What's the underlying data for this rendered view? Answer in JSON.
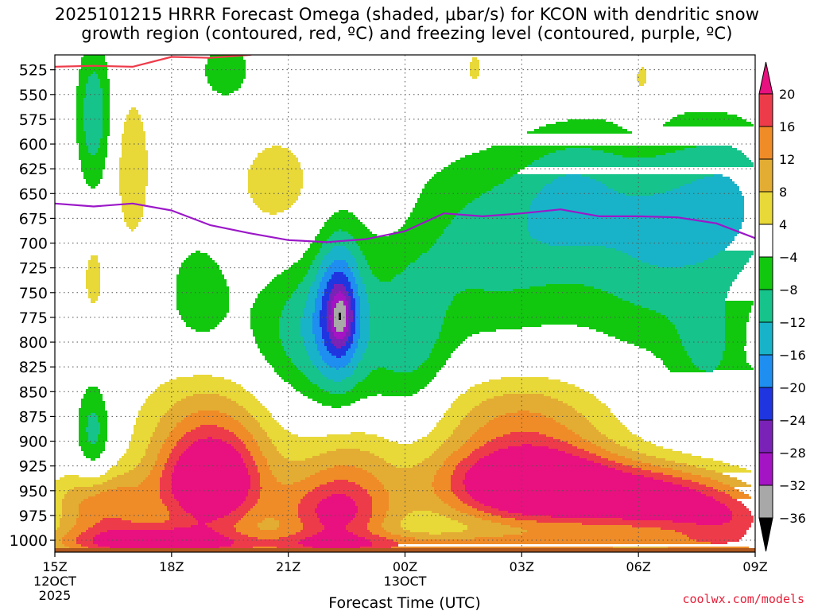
{
  "chart_data": {
    "type": "heatmap",
    "title_line1": "2025101215 HRRR Forecast Omega (shaded, μbar/s) for KCON with dendritic snow",
    "title_line2": "growth region (contoured, red, ºC) and freezing level (contoured, purple, ºC)",
    "xlabel": "Forecast Time (UTC)",
    "ylabel": "",
    "x_hours": [
      0,
      3,
      6,
      9,
      12,
      15,
      18
    ],
    "x_ticks": [
      {
        "h": 0,
        "l1": "15Z",
        "l2": "12OCT",
        "l3": "2025"
      },
      {
        "h": 3,
        "l1": "18Z",
        "l2": "",
        "l3": ""
      },
      {
        "h": 6,
        "l1": "21Z",
        "l2": "",
        "l3": ""
      },
      {
        "h": 9,
        "l1": "00Z",
        "l2": "13OCT",
        "l3": ""
      },
      {
        "h": 12,
        "l1": "03Z",
        "l2": "",
        "l3": ""
      },
      {
        "h": 15,
        "l1": "06Z",
        "l2": "",
        "l3": ""
      },
      {
        "h": 18,
        "l1": "09Z",
        "l2": "",
        "l3": ""
      }
    ],
    "xlim": [
      0,
      18
    ],
    "ylim_hpa": [
      1012,
      510
    ],
    "y_ticks": [
      525,
      550,
      575,
      600,
      625,
      650,
      675,
      700,
      725,
      750,
      775,
      800,
      825,
      850,
      875,
      900,
      925,
      950,
      975,
      1000
    ],
    "colorbar": {
      "labels": [
        "20",
        "16",
        "12",
        "8",
        "4",
        "−4",
        "−8",
        "−12",
        "−16",
        "−20",
        "−24",
        "−28",
        "−32",
        "−36"
      ],
      "bins": [
        {
          "lo": 16,
          "hi": 20,
          "color": "#ee3b4a"
        },
        {
          "lo": 12,
          "hi": 16,
          "color": "#ef8c27"
        },
        {
          "lo": 8,
          "hi": 12,
          "color": "#e3ad33"
        },
        {
          "lo": 4,
          "hi": 8,
          "color": "#e8d838"
        },
        {
          "lo": -4,
          "hi": 4,
          "color": "#ffffff"
        },
        {
          "lo": -8,
          "hi": -4,
          "color": "#11c80f"
        },
        {
          "lo": -12,
          "hi": -8,
          "color": "#16c38a"
        },
        {
          "lo": -16,
          "hi": -12,
          "color": "#18b3c8"
        },
        {
          "lo": -20,
          "hi": -16,
          "color": "#1e8ef0"
        },
        {
          "lo": -24,
          "hi": -20,
          "color": "#1f35e0"
        },
        {
          "lo": -28,
          "hi": -24,
          "color": "#7a22b8"
        },
        {
          "lo": -32,
          "hi": -28,
          "color": "#a414c4"
        },
        {
          "lo": -36,
          "hi": -32,
          "color": "#a8a8a8"
        }
      ],
      "top_color": "#e8117f",
      "bottom_color": "#000000"
    },
    "blobs": [
      {
        "cx": 1.2,
        "cp": 965,
        "sx": 1.3,
        "sp": 35,
        "a": 15,
        "p": 2
      },
      {
        "cx": 2.3,
        "cp": 1000,
        "sx": 2.0,
        "sp": 18,
        "a": 16,
        "p": 2
      },
      {
        "cx": 4.0,
        "cp": 945,
        "sx": 1.4,
        "sp": 50,
        "a": 28,
        "p": 2
      },
      {
        "cx": 4.0,
        "cp": 880,
        "sx": 1.8,
        "sp": 55,
        "a": 10,
        "p": 2
      },
      {
        "cx": 7.2,
        "cp": 975,
        "sx": 1.5,
        "sp": 40,
        "a": 20,
        "p": 2
      },
      {
        "cx": 7.5,
        "cp": 920,
        "sx": 1.4,
        "sp": 45,
        "a": 8,
        "p": 2
      },
      {
        "cx": 12.2,
        "cp": 945,
        "sx": 2.4,
        "sp": 40,
        "a": 30,
        "p": 2
      },
      {
        "cx": 12.0,
        "cp": 880,
        "sx": 2.3,
        "sp": 50,
        "a": 12,
        "p": 2
      },
      {
        "cx": 15.5,
        "cp": 960,
        "sx": 2.3,
        "sp": 35,
        "a": 22,
        "p": 2
      },
      {
        "cx": 17.5,
        "cp": 985,
        "sx": 1.5,
        "sp": 30,
        "a": 12,
        "p": 2
      },
      {
        "cx": 9.0,
        "cp": 1005,
        "sx": 9.0,
        "sp": 12,
        "a": 12,
        "p": 2
      },
      {
        "cx": 6.8,
        "cp": 790,
        "sx": 1.7,
        "sp": 75,
        "a": -12,
        "p": 2
      },
      {
        "cx": 7.3,
        "cp": 760,
        "sx": 0.6,
        "sp": 75,
        "a": -16,
        "p": 2
      },
      {
        "cx": 7.35,
        "cp": 775,
        "sx": 0.25,
        "sp": 25,
        "a": -10,
        "p": 2
      },
      {
        "cx": 9.2,
        "cp": 800,
        "sx": 1.0,
        "sp": 80,
        "a": -8,
        "p": 2
      },
      {
        "cx": 11.3,
        "cp": 700,
        "sx": 2.4,
        "sp": 95,
        "a": -10,
        "p": 2
      },
      {
        "cx": 13.2,
        "cp": 650,
        "sx": 1.3,
        "sp": 65,
        "a": -7,
        "p": 2
      },
      {
        "cx": 15.5,
        "cp": 690,
        "sx": 2.0,
        "sp": 110,
        "a": -12,
        "p": 2
      },
      {
        "cx": 17.5,
        "cp": 660,
        "sx": 1.3,
        "sp": 80,
        "a": -9,
        "p": 2
      },
      {
        "cx": 16.8,
        "cp": 810,
        "sx": 0.9,
        "sp": 55,
        "a": -7,
        "p": 2
      },
      {
        "cx": 18.0,
        "cp": 860,
        "sx": 0.8,
        "sp": 30,
        "a": -7,
        "p": 2
      },
      {
        "cx": 1.0,
        "cp": 570,
        "sx": 0.45,
        "sp": 75,
        "a": -11,
        "p": 2
      },
      {
        "cx": 1.0,
        "cp": 890,
        "sx": 0.45,
        "sp": 50,
        "a": -10,
        "p": 2
      },
      {
        "cx": 3.7,
        "cp": 750,
        "sx": 0.8,
        "sp": 55,
        "a": -7,
        "p": 2
      },
      {
        "cx": 4.4,
        "cp": 525,
        "sx": 0.7,
        "sp": 35,
        "a": -7,
        "p": 2
      },
      {
        "cx": 2.0,
        "cp": 625,
        "sx": 0.45,
        "sp": 75,
        "a": 8,
        "p": 2
      },
      {
        "cx": 1.0,
        "cp": 735,
        "sx": 0.3,
        "sp": 40,
        "a": 6,
        "p": 2
      },
      {
        "cx": 5.7,
        "cp": 640,
        "sx": 1.2,
        "sp": 60,
        "a": 6,
        "p": 2
      },
      {
        "cx": 8.8,
        "cp": 605,
        "sx": 0.4,
        "sp": 60,
        "a": 5,
        "p": 2
      },
      {
        "cx": 10.8,
        "cp": 525,
        "sx": 0.35,
        "sp": 30,
        "a": 5,
        "p": 2
      },
      {
        "cx": 15.1,
        "cp": 540,
        "sx": 0.55,
        "sp": 45,
        "a": 6,
        "p": 2
      }
    ],
    "freezing_level": {
      "color": "#9b18c8",
      "x": [
        0,
        1,
        2,
        3,
        4,
        5,
        6,
        7,
        8,
        9,
        10,
        11,
        12,
        13,
        14,
        15,
        16,
        17,
        18
      ],
      "p": [
        660,
        663,
        660,
        667,
        682,
        690,
        697,
        699,
        696,
        688,
        670,
        673,
        670,
        666,
        673,
        673,
        674,
        680,
        695
      ]
    },
    "dgz_line": {
      "color": "#ee3b4a",
      "x": [
        0,
        1,
        2,
        3,
        4,
        5,
        5.7
      ],
      "p": [
        522,
        521,
        522,
        512,
        513,
        510,
        505
      ]
    }
  },
  "credit": "coolwx.com/models"
}
